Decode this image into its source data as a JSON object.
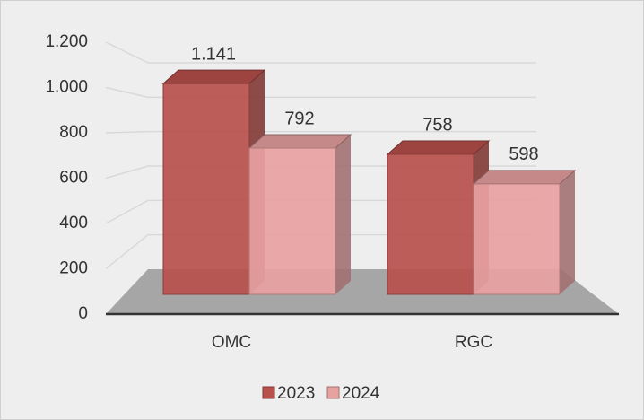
{
  "chart_data": {
    "type": "bar3d",
    "categories": [
      "OMC",
      "RGC"
    ],
    "series": [
      {
        "name": "2023",
        "color": "#b9504c",
        "values": [
          1141,
          758
        ],
        "value_labels": [
          "1.141",
          "758"
        ]
      },
      {
        "name": "2024",
        "color": "#e8a1a1",
        "values": [
          792,
          598
        ],
        "value_labels": [
          "792",
          "598"
        ]
      }
    ],
    "ylim": [
      0,
      1200
    ],
    "yticks": [
      0,
      200,
      400,
      600,
      800,
      {
        "value": 1000,
        "label": "1.000"
      },
      {
        "value": 1200,
        "label": "1.200"
      }
    ],
    "grid": true,
    "legend": "bottom"
  }
}
